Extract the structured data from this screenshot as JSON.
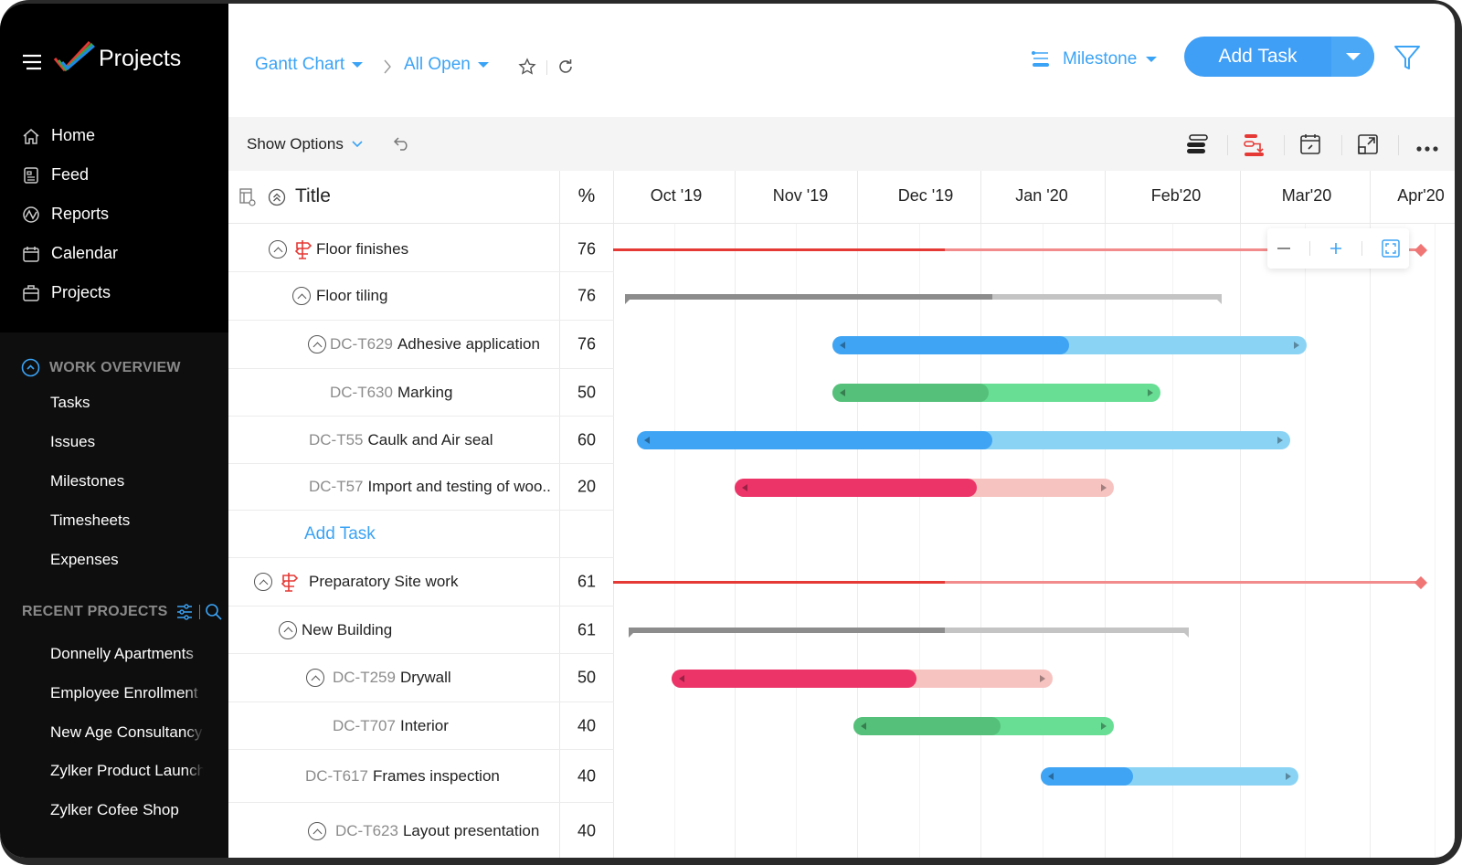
{
  "app": {
    "name": "Projects"
  },
  "sidebar": {
    "nav": [
      {
        "label": "Home",
        "icon": "home-icon"
      },
      {
        "label": "Feed",
        "icon": "feed-icon"
      },
      {
        "label": "Reports",
        "icon": "reports-icon"
      },
      {
        "label": "Calendar",
        "icon": "calendar-icon"
      },
      {
        "label": "Projects",
        "icon": "projects-icon"
      }
    ],
    "work_overview": {
      "title": "WORK OVERVIEW",
      "items": [
        "Tasks",
        "Issues",
        "Milestones",
        "Timesheets",
        "Expenses"
      ]
    },
    "recent_projects": {
      "title": "RECENT PROJECTS",
      "items": [
        "Donnelly Apartments",
        "Employee Enrollment",
        "New Age Consultancy",
        "Zylker Product Launch",
        "Zylker Cofee Shop"
      ]
    }
  },
  "header": {
    "breadcrumb": [
      "Gantt Chart",
      "All Open"
    ],
    "milestone_label": "Milestone",
    "add_task_label": "Add Task"
  },
  "toolbar": {
    "show_options": "Show Options"
  },
  "columns": {
    "title": "Title",
    "percent": "%"
  },
  "timeline": {
    "months": [
      "Oct '19",
      "Nov '19",
      "Dec '19",
      "Jan '20",
      "Feb'20",
      "Mar'20",
      "Apr'20"
    ]
  },
  "colors": {
    "accent": "#3ba3f5",
    "milestone": "#e53935",
    "blue": "#3fa4f3",
    "blue_light": "#8bd3f4",
    "green": "#55c07a",
    "green_light": "#68de94",
    "red": "#ec3469",
    "red_light": "#f6c3c0",
    "gray": "#8c8c8c",
    "gray_light": "#c4c4c4"
  },
  "rows": [
    {
      "key": "",
      "title": "Floor finishes",
      "percent": "76",
      "kind": "milestone",
      "expandable": true,
      "bar": {
        "type": "milestone",
        "start": "2019-10-01",
        "end": "2020-04-13",
        "done": "2019-12-23"
      }
    },
    {
      "key": "",
      "title": "Floor tiling",
      "percent": "76",
      "kind": "tasklist",
      "expandable": true,
      "bar": {
        "type": "gray",
        "start": "2019-10-04",
        "end": "2020-02-26",
        "done": "2020-01-04"
      }
    },
    {
      "key": "DC-T629",
      "title": "Adhesive application",
      "percent": "76",
      "kind": "task",
      "expandable": true,
      "bar": {
        "type": "blue",
        "start": "2019-11-25",
        "end": "2020-03-17",
        "done": "2020-01-23"
      }
    },
    {
      "key": "DC-T630",
      "title": "Marking",
      "percent": "50",
      "kind": "task",
      "expandable": false,
      "bar": {
        "type": "green",
        "start": "2019-11-25",
        "end": "2020-02-13",
        "done": "2020-01-03"
      }
    },
    {
      "key": "DC-T55",
      "title": "Caulk and Air seal",
      "percent": "60",
      "kind": "task",
      "expandable": false,
      "bar": {
        "type": "blue",
        "start": "2019-10-07",
        "end": "2020-03-13",
        "done": "2020-01-04"
      }
    },
    {
      "key": "DC-T57",
      "title": "Import and testing of woo..",
      "percent": "20",
      "kind": "task",
      "expandable": false,
      "bar": {
        "type": "red",
        "start": "2019-11-01",
        "end": "2020-02-03",
        "done": "2019-12-31"
      }
    },
    {
      "key": "",
      "title": "Add Task",
      "percent": "",
      "kind": "add",
      "expandable": false
    },
    {
      "key": "",
      "title": "Preparatory Site work",
      "percent": "61",
      "kind": "milestone",
      "expandable": true,
      "bar": {
        "type": "milestone",
        "start": "2019-10-01",
        "end": "2020-04-13",
        "done": "2019-12-23"
      }
    },
    {
      "key": "",
      "title": "New Building",
      "percent": "61",
      "kind": "tasklist",
      "expandable": true,
      "bar": {
        "type": "gray",
        "start": "2019-10-05",
        "end": "2020-02-19",
        "done": "2019-12-23"
      }
    },
    {
      "key": "DC-T259",
      "title": "Drywall",
      "percent": "50",
      "kind": "task",
      "expandable": true,
      "bar": {
        "type": "red",
        "start": "2019-10-16",
        "end": "2020-01-19",
        "done": "2019-12-16"
      }
    },
    {
      "key": "DC-T707",
      "title": "Interior",
      "percent": "40",
      "kind": "task",
      "expandable": false,
      "bar": {
        "type": "green",
        "start": "2019-11-30",
        "end": "2020-02-03",
        "done": "2020-01-06"
      }
    },
    {
      "key": "DC-T617",
      "title": "Frames inspection",
      "percent": "40",
      "kind": "task",
      "expandable": false,
      "bar": {
        "type": "blue",
        "start": "2020-01-16",
        "end": "2020-03-15",
        "done": "2020-02-07"
      }
    },
    {
      "key": "DC-T623",
      "title": "Layout presentation",
      "percent": "40",
      "kind": "task",
      "expandable": true
    }
  ]
}
